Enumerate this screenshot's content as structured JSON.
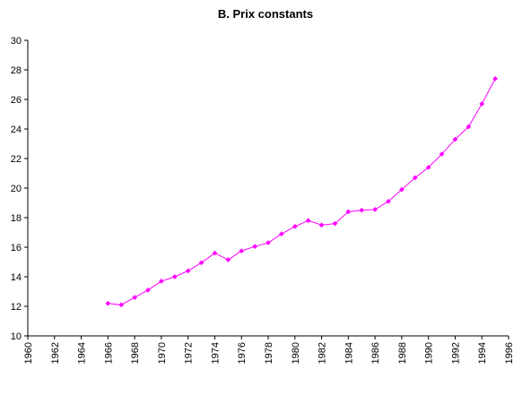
{
  "chart_data": {
    "type": "line",
    "title": "B. Prix constants",
    "xlabel": "",
    "ylabel": "",
    "xlim": [
      1960,
      1996
    ],
    "ylim": [
      10,
      30
    ],
    "x_ticks": [
      1960,
      1962,
      1964,
      1966,
      1968,
      1970,
      1972,
      1974,
      1976,
      1978,
      1980,
      1982,
      1984,
      1986,
      1988,
      1990,
      1992,
      1994,
      1996
    ],
    "y_ticks": [
      10,
      12,
      14,
      16,
      18,
      20,
      22,
      24,
      26,
      28,
      30
    ],
    "grid": false,
    "legend": "none",
    "series": [
      {
        "color": "#ff00ff",
        "marker": "diamond",
        "x": [
          1966,
          1967,
          1968,
          1969,
          1970,
          1971,
          1972,
          1973,
          1974,
          1975,
          1976,
          1977,
          1978,
          1979,
          1980,
          1981,
          1982,
          1983,
          1984,
          1985,
          1986,
          1987,
          1988,
          1989,
          1990,
          1991,
          1992,
          1993,
          1994,
          1995
        ],
        "y": [
          12.2,
          12.1,
          12.6,
          13.1,
          13.7,
          14.0,
          14.4,
          14.95,
          15.6,
          15.15,
          15.75,
          16.05,
          16.3,
          16.9,
          17.4,
          17.8,
          17.5,
          17.6,
          18.4,
          18.5,
          18.55,
          19.1,
          19.9,
          20.7,
          21.4,
          22.3,
          23.3,
          24.15,
          25.7,
          27.4
        ]
      }
    ]
  }
}
